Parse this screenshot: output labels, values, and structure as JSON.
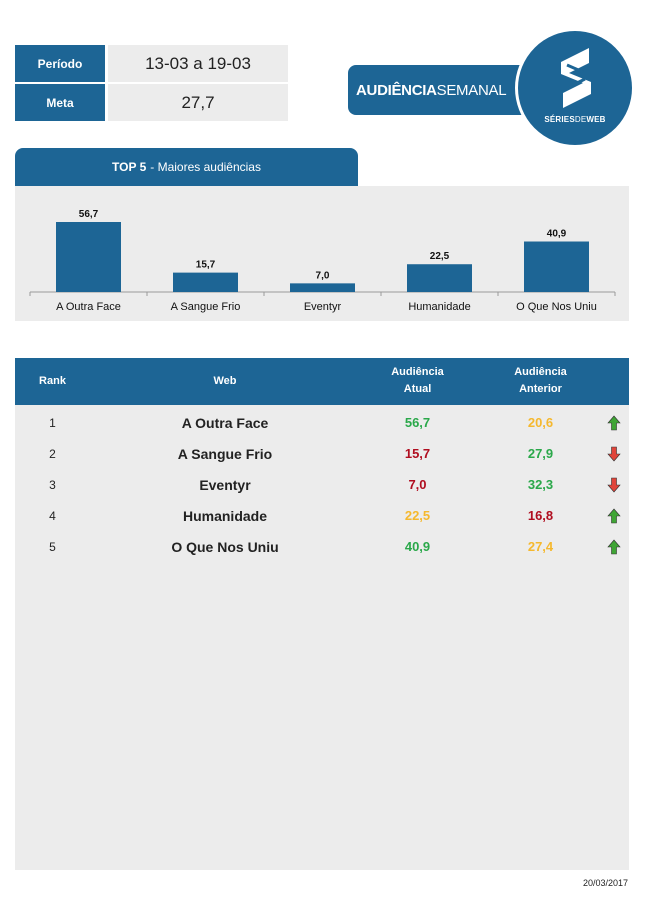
{
  "info": {
    "period_label": "Período",
    "period_value": "13-03 a 19-03",
    "goal_label": "Meta",
    "goal_value": "27,7"
  },
  "banner": {
    "title_bold": "AUDIÊNCIA",
    "title_light": "SEMANAL"
  },
  "logo": {
    "text_bold_1": "SÉRIES",
    "text_thin": "DE",
    "text_bold_2": "WEB"
  },
  "chart_section": {
    "title_bold": "TOP 5",
    "title_rest": "- Maiores audiências"
  },
  "chart_data": {
    "type": "bar",
    "title": "TOP 5 - Maiores audiências",
    "categories": [
      "A Outra Face",
      "A Sangue Frio",
      "Eventyr",
      "Humanidade",
      "O Que Nos Uniu"
    ],
    "values": [
      56.7,
      15.7,
      7.0,
      22.5,
      40.9
    ],
    "value_labels": [
      "56,7",
      "15,7",
      "7,0",
      "22,5",
      "40,9"
    ],
    "ylim": [
      0,
      60
    ],
    "grid": false,
    "legend": "none",
    "color": "#1d6595"
  },
  "table": {
    "headers": {
      "rank": "Rank",
      "web": "Web",
      "current_1": "Audiência",
      "current_2": "Atual",
      "previous_1": "Audiência",
      "previous_2": "Anterior"
    },
    "rows": [
      {
        "rank": "1",
        "web": "A Outra Face",
        "current": "56,7",
        "current_color": "#2aa84a",
        "previous": "20,6",
        "previous_color": "#f5b82e",
        "trend": "up"
      },
      {
        "rank": "2",
        "web": "A Sangue Frio",
        "current": "15,7",
        "current_color": "#b00d1f",
        "previous": "27,9",
        "previous_color": "#2aa84a",
        "trend": "down"
      },
      {
        "rank": "3",
        "web": "Eventyr",
        "current": "7,0",
        "current_color": "#b00d1f",
        "previous": "32,3",
        "previous_color": "#2aa84a",
        "trend": "down"
      },
      {
        "rank": "4",
        "web": "Humanidade",
        "current": "22,5",
        "current_color": "#f5b82e",
        "previous": "16,8",
        "previous_color": "#b00d1f",
        "trend": "up"
      },
      {
        "rank": "5",
        "web": "O Que Nos Uniu",
        "current": "40,9",
        "current_color": "#2aa84a",
        "previous": "27,4",
        "previous_color": "#f5b82e",
        "trend": "up"
      }
    ]
  },
  "colors": {
    "brand": "#1d6595",
    "panel": "#ececec",
    "up": "#3fa535",
    "down": "#e0443a"
  },
  "footer": {
    "date": "20/03/2017"
  }
}
